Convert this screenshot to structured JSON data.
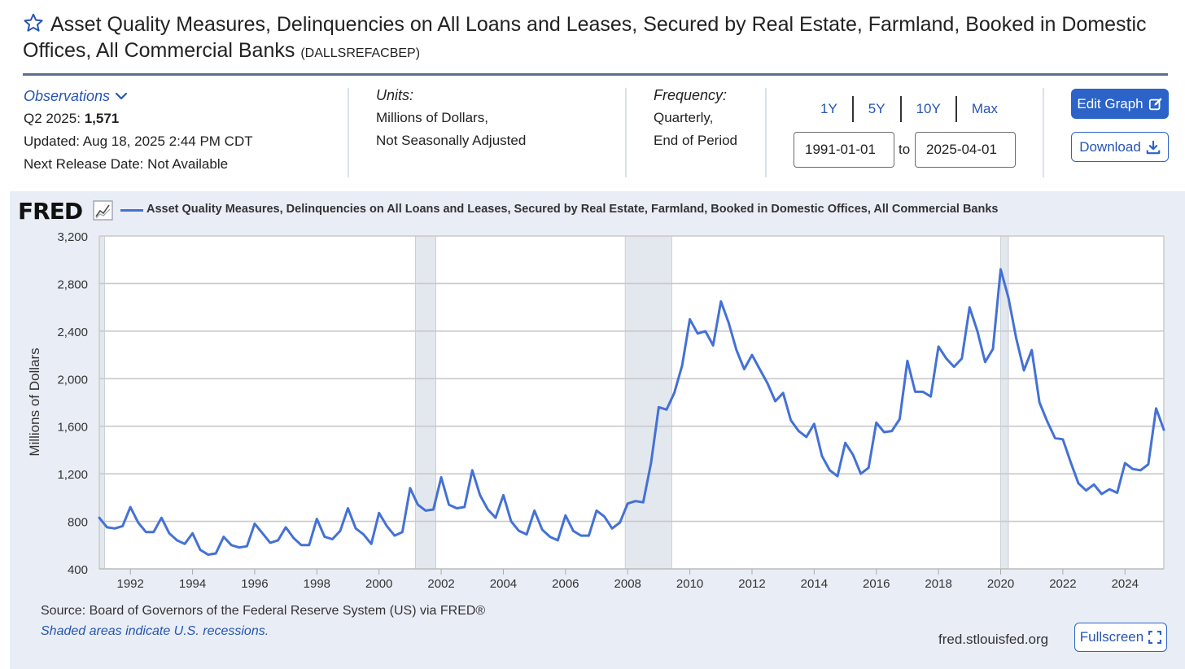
{
  "header": {
    "title": "Asset Quality Measures, Delinquencies on All Loans and Leases, Secured by Real Estate, Farmland, Booked in Domestic Offices, All Commercial Banks",
    "series_code": "(DALLSREFACBEP)"
  },
  "observations": {
    "label": "Observations",
    "latest_period": "Q2 2025:",
    "latest_value": "1,571",
    "updated": "Updated: Aug 18, 2025 2:44 PM CDT",
    "next_release": "Next Release Date: Not Available"
  },
  "units": {
    "label": "Units:",
    "line1": "Millions of Dollars,",
    "line2": "Not Seasonally Adjusted"
  },
  "frequency": {
    "label": "Frequency:",
    "line1": "Quarterly,",
    "line2": "End of Period"
  },
  "range": {
    "buttons": [
      "1Y",
      "5Y",
      "10Y",
      "Max"
    ],
    "start": "1991-01-01",
    "to_label": "to",
    "end": "2025-04-01"
  },
  "actions": {
    "edit_graph": "Edit Graph",
    "download": "Download",
    "fullscreen": "Fullscreen"
  },
  "graph": {
    "logo": "FRED",
    "legend": "Asset Quality Measures, Delinquencies on All Loans and Leases, Secured by Real Estate, Farmland, Booked in Domestic Offices, All Commercial Banks",
    "source": "Source: Board of Governors of the Federal Reserve System (US) via FRED®",
    "shaded_note": "Shaded areas indicate U.S. recessions.",
    "url": "fred.stlouisfed.org"
  },
  "colors": {
    "line": "#4471d6",
    "accent": "#2c63c9",
    "panel": "#e9eef6",
    "recession": "#e3e7ee"
  },
  "chart_data": {
    "type": "line",
    "title": "Asset Quality Measures, Delinquencies on All Loans and Leases, Secured by Real Estate, Farmland, Booked in Domestic Offices, All Commercial Banks",
    "xlabel": "",
    "ylabel": "Millions of Dollars",
    "xlim": [
      1991.0,
      2025.25
    ],
    "ylim": [
      400,
      3200
    ],
    "yticks": [
      400,
      800,
      1200,
      1600,
      2000,
      2400,
      2800,
      3200
    ],
    "ytick_labels": [
      "400",
      "800",
      "1,200",
      "1,600",
      "2,000",
      "2,400",
      "2,800",
      "3,200"
    ],
    "xticks": [
      1992,
      1994,
      1996,
      1998,
      2000,
      2002,
      2004,
      2006,
      2008,
      2010,
      2012,
      2014,
      2016,
      2018,
      2020,
      2022,
      2024
    ],
    "recessions": [
      [
        1991.0,
        1991.17
      ],
      [
        2001.17,
        2001.83
      ],
      [
        2007.92,
        2009.42
      ],
      [
        2020.0,
        2020.25
      ]
    ],
    "series": [
      {
        "name": "DALLSREFACBEP",
        "start": 1991.0,
        "step": 0.25,
        "values": [
          830,
          750,
          740,
          760,
          920,
          790,
          710,
          710,
          830,
          700,
          640,
          610,
          700,
          560,
          520,
          530,
          670,
          600,
          580,
          590,
          780,
          700,
          620,
          640,
          750,
          660,
          600,
          600,
          820,
          670,
          650,
          720,
          910,
          740,
          690,
          610,
          870,
          760,
          680,
          710,
          1080,
          940,
          890,
          900,
          1170,
          940,
          910,
          920,
          1230,
          1020,
          900,
          830,
          1020,
          800,
          720,
          690,
          890,
          730,
          670,
          640,
          850,
          720,
          680,
          680,
          890,
          840,
          740,
          790,
          950,
          970,
          960,
          1290,
          1760,
          1740,
          1880,
          2110,
          2500,
          2380,
          2400,
          2280,
          2650,
          2470,
          2240,
          2080,
          2200,
          2080,
          1960,
          1810,
          1880,
          1650,
          1560,
          1510,
          1620,
          1350,
          1230,
          1180,
          1460,
          1360,
          1200,
          1250,
          1630,
          1550,
          1560,
          1660,
          2150,
          1890,
          1890,
          1850,
          2270,
          2170,
          2100,
          2170,
          2600,
          2400,
          2140,
          2250,
          2920,
          2680,
          2340,
          2070,
          2240,
          1800,
          1640,
          1500,
          1490,
          1300,
          1120,
          1060,
          1110,
          1030,
          1070,
          1040,
          1290,
          1240,
          1230,
          1280,
          1750,
          1571
        ]
      }
    ]
  }
}
